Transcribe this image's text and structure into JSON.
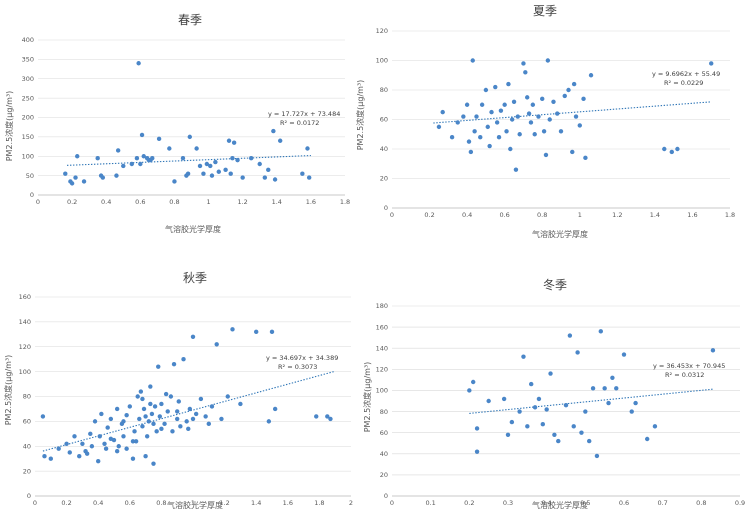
{
  "chart_data": [
    {
      "type": "scatter",
      "title": "春季",
      "xlabel": "气溶胶光学厚度",
      "ylabel": "PM2.5浓度(μg/m³)",
      "xlim": [
        0,
        1.8
      ],
      "ylim": [
        0,
        400
      ],
      "xticks": [
        "0",
        "0.2",
        "0.4",
        "0.6",
        "0.8",
        "1",
        "1.2",
        "1.4",
        "1.6",
        "1.8"
      ],
      "yticks": [
        "0",
        "50",
        "100",
        "150",
        "200",
        "250",
        "300",
        "350",
        "400"
      ],
      "equation": "y = 17.727x + 73.484",
      "r2": "R² = 0.0172",
      "trend": {
        "slope": 17.727,
        "intercept": 73.484,
        "x0": 0.17,
        "x1": 1.6
      },
      "points": [
        [
          0.16,
          55
        ],
        [
          0.19,
          35
        ],
        [
          0.2,
          30
        ],
        [
          0.22,
          45
        ],
        [
          0.23,
          100
        ],
        [
          0.27,
          35
        ],
        [
          0.35,
          95
        ],
        [
          0.37,
          50
        ],
        [
          0.38,
          45
        ],
        [
          0.46,
          50
        ],
        [
          0.47,
          115
        ],
        [
          0.5,
          75
        ],
        [
          0.55,
          80
        ],
        [
          0.58,
          95
        ],
        [
          0.59,
          340
        ],
        [
          0.6,
          80
        ],
        [
          0.61,
          155
        ],
        [
          0.62,
          100
        ],
        [
          0.64,
          95
        ],
        [
          0.65,
          90
        ],
        [
          0.66,
          90
        ],
        [
          0.67,
          95
        ],
        [
          0.71,
          145
        ],
        [
          0.77,
          120
        ],
        [
          0.8,
          35
        ],
        [
          0.85,
          95
        ],
        [
          0.87,
          50
        ],
        [
          0.88,
          55
        ],
        [
          0.89,
          150
        ],
        [
          0.93,
          120
        ],
        [
          0.95,
          75
        ],
        [
          0.97,
          55
        ],
        [
          0.99,
          80
        ],
        [
          1.01,
          75
        ],
        [
          1.02,
          50
        ],
        [
          1.04,
          85
        ],
        [
          1.06,
          60
        ],
        [
          1.1,
          65
        ],
        [
          1.12,
          140
        ],
        [
          1.13,
          55
        ],
        [
          1.14,
          95
        ],
        [
          1.15,
          135
        ],
        [
          1.17,
          90
        ],
        [
          1.2,
          45
        ],
        [
          1.25,
          95
        ],
        [
          1.3,
          80
        ],
        [
          1.33,
          45
        ],
        [
          1.35,
          65
        ],
        [
          1.38,
          165
        ],
        [
          1.39,
          40
        ],
        [
          1.42,
          140
        ],
        [
          1.55,
          55
        ],
        [
          1.58,
          120
        ],
        [
          1.59,
          45
        ]
      ]
    },
    {
      "type": "scatter",
      "title": "夏季",
      "xlabel": "气溶胶光学厚度",
      "ylabel": "PM2.5浓度(μg/m³)",
      "xlim": [
        0,
        1.8
      ],
      "ylim": [
        0,
        120
      ],
      "xticks": [
        "0",
        "0.2",
        "0.4",
        "0.6",
        "0.8",
        "1",
        "1.2",
        "1.4",
        "1.6",
        "1.8"
      ],
      "yticks": [
        "0",
        "20",
        "40",
        "60",
        "80",
        "100",
        "120"
      ],
      "equation": "y = 9.6962x + 55.49",
      "r2": "R² = 0.0229",
      "trend": {
        "slope": 9.6962,
        "intercept": 55.49,
        "x0": 0.22,
        "x1": 1.7
      },
      "points": [
        [
          0.25,
          55
        ],
        [
          0.27,
          65
        ],
        [
          0.32,
          48
        ],
        [
          0.35,
          58
        ],
        [
          0.38,
          62
        ],
        [
          0.4,
          70
        ],
        [
          0.41,
          45
        ],
        [
          0.42,
          38
        ],
        [
          0.43,
          100
        ],
        [
          0.44,
          52
        ],
        [
          0.45,
          62
        ],
        [
          0.47,
          48
        ],
        [
          0.48,
          70
        ],
        [
          0.5,
          80
        ],
        [
          0.51,
          55
        ],
        [
          0.52,
          42
        ],
        [
          0.53,
          65
        ],
        [
          0.55,
          82
        ],
        [
          0.56,
          58
        ],
        [
          0.57,
          48
        ],
        [
          0.58,
          66
        ],
        [
          0.6,
          70
        ],
        [
          0.61,
          52
        ],
        [
          0.62,
          84
        ],
        [
          0.63,
          40
        ],
        [
          0.64,
          60
        ],
        [
          0.65,
          72
        ],
        [
          0.66,
          26
        ],
        [
          0.67,
          62
        ],
        [
          0.68,
          50
        ],
        [
          0.7,
          98
        ],
        [
          0.71,
          92
        ],
        [
          0.72,
          75
        ],
        [
          0.73,
          64
        ],
        [
          0.74,
          58
        ],
        [
          0.75,
          70
        ],
        [
          0.76,
          50
        ],
        [
          0.78,
          62
        ],
        [
          0.8,
          74
        ],
        [
          0.81,
          52
        ],
        [
          0.82,
          36
        ],
        [
          0.83,
          100
        ],
        [
          0.84,
          60
        ],
        [
          0.86,
          72
        ],
        [
          0.88,
          64
        ],
        [
          0.9,
          52
        ],
        [
          0.92,
          76
        ],
        [
          0.94,
          80
        ],
        [
          0.96,
          38
        ],
        [
          0.97,
          84
        ],
        [
          0.98,
          62
        ],
        [
          1.0,
          56
        ],
        [
          1.02,
          74
        ],
        [
          1.03,
          34
        ],
        [
          1.06,
          90
        ],
        [
          1.45,
          40
        ],
        [
          1.49,
          38
        ],
        [
          1.52,
          40
        ],
        [
          1.7,
          98
        ]
      ]
    },
    {
      "type": "scatter",
      "title": "秋季",
      "xlabel": "气溶胶光学厚度",
      "ylabel": "PM2.5浓度(μg/m³)",
      "xlim": [
        0,
        2
      ],
      "ylim": [
        0,
        160
      ],
      "xticks": [
        "0",
        "0.2",
        "0.4",
        "0.6",
        "0.8",
        "1",
        "1.2",
        "1.4",
        "1.6",
        "1.8",
        "2"
      ],
      "yticks": [
        "0",
        "20",
        "40",
        "60",
        "80",
        "100",
        "120",
        "140",
        "160"
      ],
      "equation": "y = 34.697x + 34.389",
      "r2": "R² = 0.3073",
      "trend": {
        "slope": 34.697,
        "intercept": 34.389,
        "x0": 0.05,
        "x1": 1.9
      },
      "points": [
        [
          0.05,
          64
        ],
        [
          0.06,
          32
        ],
        [
          0.1,
          30
        ],
        [
          0.15,
          38
        ],
        [
          0.2,
          42
        ],
        [
          0.22,
          35
        ],
        [
          0.25,
          48
        ],
        [
          0.28,
          32
        ],
        [
          0.3,
          42
        ],
        [
          0.32,
          36
        ],
        [
          0.35,
          50
        ],
        [
          0.36,
          40
        ],
        [
          0.38,
          60
        ],
        [
          0.4,
          28
        ],
        [
          0.41,
          48
        ],
        [
          0.42,
          66
        ],
        [
          0.44,
          42
        ],
        [
          0.45,
          38
        ],
        [
          0.46,
          55
        ],
        [
          0.48,
          62
        ],
        [
          0.5,
          45
        ],
        [
          0.52,
          70
        ],
        [
          0.53,
          40
        ],
        [
          0.55,
          58
        ],
        [
          0.56,
          48
        ],
        [
          0.58,
          65
        ],
        [
          0.6,
          72
        ],
        [
          0.62,
          44
        ],
        [
          0.63,
          52
        ],
        [
          0.65,
          80
        ],
        [
          0.66,
          62
        ],
        [
          0.67,
          84
        ],
        [
          0.68,
          56
        ],
        [
          0.69,
          70
        ],
        [
          0.7,
          64
        ],
        [
          0.71,
          48
        ],
        [
          0.72,
          60
        ],
        [
          0.73,
          88
        ],
        [
          0.74,
          66
        ],
        [
          0.75,
          58
        ],
        [
          0.76,
          72
        ],
        [
          0.77,
          52
        ],
        [
          0.78,
          104
        ],
        [
          0.79,
          64
        ],
        [
          0.8,
          74
        ],
        [
          0.82,
          58
        ],
        [
          0.84,
          68
        ],
        [
          0.86,
          80
        ],
        [
          0.87,
          52
        ],
        [
          0.88,
          106
        ],
        [
          0.9,
          62
        ],
        [
          0.91,
          76
        ],
        [
          0.92,
          56
        ],
        [
          0.94,
          110
        ],
        [
          0.96,
          60
        ],
        [
          0.98,
          70
        ],
        [
          1.0,
          128
        ],
        [
          1.02,
          66
        ],
        [
          1.05,
          78
        ],
        [
          1.08,
          64
        ],
        [
          1.1,
          58
        ],
        [
          1.12,
          72
        ],
        [
          1.15,
          122
        ],
        [
          1.18,
          62
        ],
        [
          1.22,
          80
        ],
        [
          1.25,
          134
        ],
        [
          1.3,
          74
        ],
        [
          1.4,
          132
        ],
        [
          1.48,
          60
        ],
        [
          1.5,
          132
        ],
        [
          1.52,
          70
        ],
        [
          1.78,
          64
        ],
        [
          1.85,
          64
        ],
        [
          1.87,
          62
        ],
        [
          0.62,
          30
        ],
        [
          0.7,
          32
        ],
        [
          0.75,
          26
        ],
        [
          0.52,
          36
        ],
        [
          0.33,
          34
        ],
        [
          0.48,
          46
        ],
        [
          0.56,
          60
        ],
        [
          0.58,
          38
        ],
        [
          0.64,
          44
        ],
        [
          0.68,
          78
        ],
        [
          0.73,
          74
        ],
        [
          0.8,
          54
        ],
        [
          0.83,
          82
        ],
        [
          0.9,
          68
        ],
        [
          0.97,
          54
        ],
        [
          1.0,
          62
        ]
      ]
    },
    {
      "type": "scatter",
      "title": "冬季",
      "xlabel": "气溶胶光学厚度",
      "ylabel": "PM2.5浓度(μg/m³)",
      "xlim": [
        0,
        0.9
      ],
      "ylim": [
        0,
        180
      ],
      "xticks": [
        "0",
        "0.1",
        "0.2",
        "0.3",
        "0.4",
        "0.5",
        "0.6",
        "0.7",
        "0.8",
        "0.9"
      ],
      "yticks": [
        "0",
        "20",
        "40",
        "60",
        "80",
        "100",
        "120",
        "140",
        "160",
        "180"
      ],
      "equation": "y = 36.453x + 70.945",
      "r2": "R² = 0.0312",
      "trend": {
        "slope": 36.453,
        "intercept": 70.945,
        "x0": 0.2,
        "x1": 0.83
      },
      "points": [
        [
          0.2,
          100
        ],
        [
          0.21,
          108
        ],
        [
          0.22,
          42
        ],
        [
          0.22,
          64
        ],
        [
          0.25,
          90
        ],
        [
          0.29,
          92
        ],
        [
          0.3,
          58
        ],
        [
          0.31,
          70
        ],
        [
          0.33,
          80
        ],
        [
          0.34,
          132
        ],
        [
          0.35,
          66
        ],
        [
          0.36,
          106
        ],
        [
          0.37,
          84
        ],
        [
          0.38,
          92
        ],
        [
          0.39,
          68
        ],
        [
          0.4,
          82
        ],
        [
          0.41,
          116
        ],
        [
          0.42,
          58
        ],
        [
          0.43,
          52
        ],
        [
          0.45,
          86
        ],
        [
          0.46,
          152
        ],
        [
          0.47,
          66
        ],
        [
          0.48,
          136
        ],
        [
          0.49,
          60
        ],
        [
          0.5,
          80
        ],
        [
          0.51,
          52
        ],
        [
          0.52,
          102
        ],
        [
          0.53,
          38
        ],
        [
          0.54,
          156
        ],
        [
          0.55,
          102
        ],
        [
          0.56,
          88
        ],
        [
          0.57,
          112
        ],
        [
          0.58,
          102
        ],
        [
          0.6,
          134
        ],
        [
          0.62,
          80
        ],
        [
          0.63,
          88
        ],
        [
          0.66,
          54
        ],
        [
          0.68,
          66
        ],
        [
          0.83,
          138
        ]
      ]
    }
  ]
}
